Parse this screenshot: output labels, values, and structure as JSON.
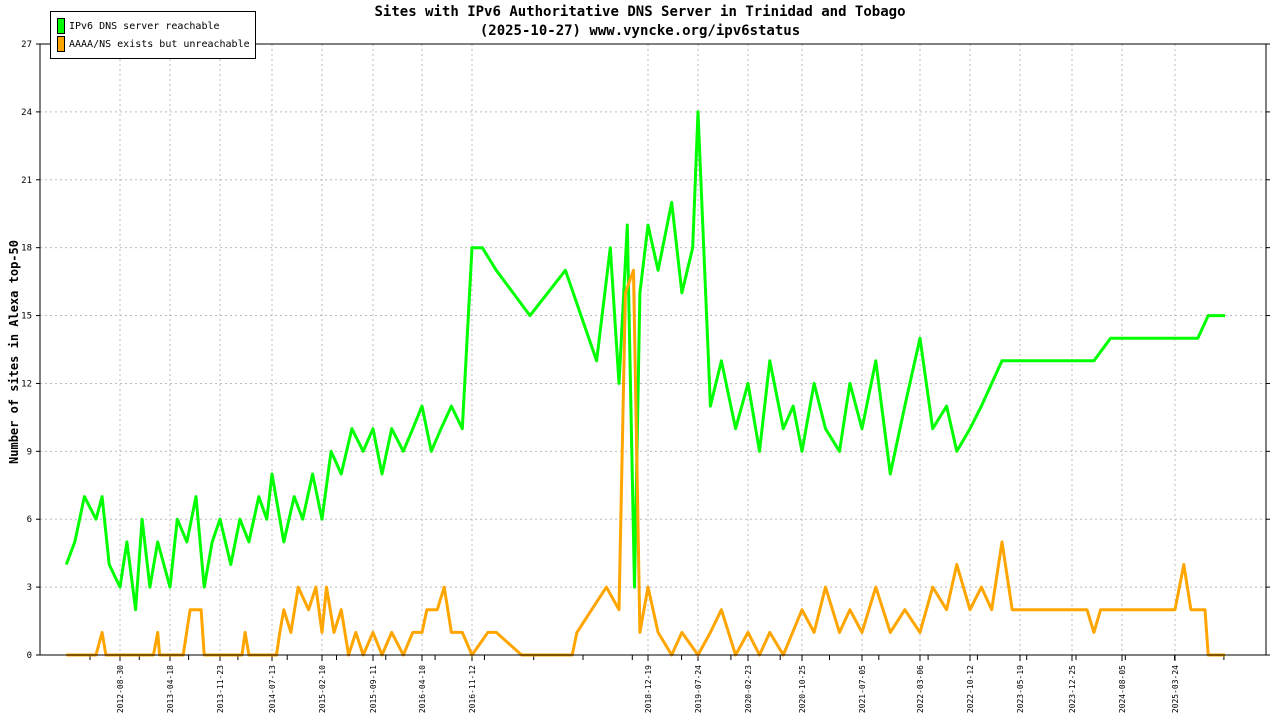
{
  "title": "Sites with IPv6 Authoritative DNS Server in Trinidad and Tobago",
  "subtitle": "(2025-10-27) www.vyncke.org/ipv6status",
  "chart_data": {
    "type": "line",
    "ylabel": "Number of sites in Alexa top-50",
    "ylim": [
      0,
      27
    ],
    "yticks": [
      0,
      3,
      6,
      9,
      12,
      15,
      18,
      21,
      24,
      27
    ],
    "xticks": [
      "2012-08-30",
      "2013-04-18",
      "2013-11-23",
      "2014-07-13",
      "2015-02-10",
      "2015-09-11",
      "2016-04-10",
      "2016-11-12",
      "2018-12-19",
      "2019-07-24",
      "2020-02-23",
      "2020-10-25",
      "2021-07-05",
      "2022-03-06",
      "2022-10-12",
      "2023-05-19",
      "2023-12-25",
      "2024-08-05",
      "2025-03-24"
    ],
    "legend_position": "top-left",
    "grid": true,
    "series": [
      {
        "name": "IPv6 DNS server reachable",
        "color": "#00ff00",
        "points": [
          [
            "2012-01-15",
            4
          ],
          [
            "2012-02-20",
            5
          ],
          [
            "2012-04-01",
            7
          ],
          [
            "2012-05-20",
            6
          ],
          [
            "2012-06-15",
            7
          ],
          [
            "2012-07-15",
            4
          ],
          [
            "2012-08-30",
            3
          ],
          [
            "2012-10-01",
            5
          ],
          [
            "2012-11-10",
            2
          ],
          [
            "2012-12-10",
            6
          ],
          [
            "2013-01-15",
            3
          ],
          [
            "2013-02-20",
            5
          ],
          [
            "2013-04-18",
            3
          ],
          [
            "2013-05-20",
            6
          ],
          [
            "2013-07-01",
            5
          ],
          [
            "2013-08-10",
            7
          ],
          [
            "2013-09-15",
            3
          ],
          [
            "2013-10-20",
            5
          ],
          [
            "2013-11-23",
            6
          ],
          [
            "2014-01-10",
            4
          ],
          [
            "2014-02-20",
            6
          ],
          [
            "2014-04-01",
            5
          ],
          [
            "2014-05-15",
            7
          ],
          [
            "2014-06-20",
            6
          ],
          [
            "2014-07-13",
            8
          ],
          [
            "2014-09-01",
            5
          ],
          [
            "2014-10-15",
            7
          ],
          [
            "2014-11-20",
            6
          ],
          [
            "2015-01-01",
            8
          ],
          [
            "2015-02-10",
            6
          ],
          [
            "2015-03-20",
            9
          ],
          [
            "2015-05-01",
            8
          ],
          [
            "2015-06-15",
            10
          ],
          [
            "2015-08-01",
            9
          ],
          [
            "2015-09-11",
            10
          ],
          [
            "2015-10-20",
            8
          ],
          [
            "2015-12-01",
            10
          ],
          [
            "2016-01-20",
            9
          ],
          [
            "2016-03-01",
            10
          ],
          [
            "2016-04-10",
            11
          ],
          [
            "2016-05-20",
            9
          ],
          [
            "2016-07-01",
            10
          ],
          [
            "2016-08-15",
            11
          ],
          [
            "2016-10-01",
            10
          ],
          [
            "2016-11-12",
            18
          ],
          [
            "2016-12-20",
            18
          ],
          [
            "2017-02-10",
            17
          ],
          [
            "2017-06-15",
            15
          ],
          [
            "2017-11-20",
            17
          ],
          [
            "2018-04-15",
            13
          ],
          [
            "2018-06-20",
            18
          ],
          [
            "2018-08-01",
            12
          ],
          [
            "2018-09-10",
            19
          ],
          [
            "2018-10-15",
            3
          ],
          [
            "2018-11-10",
            16
          ],
          [
            "2018-12-19",
            19
          ],
          [
            "2019-02-01",
            17
          ],
          [
            "2019-04-01",
            20
          ],
          [
            "2019-05-15",
            16
          ],
          [
            "2019-07-01",
            18
          ],
          [
            "2019-07-24",
            24
          ],
          [
            "2019-09-15",
            11
          ],
          [
            "2019-11-01",
            13
          ],
          [
            "2020-01-01",
            10
          ],
          [
            "2020-02-23",
            12
          ],
          [
            "2020-04-15",
            9
          ],
          [
            "2020-06-01",
            13
          ],
          [
            "2020-08-01",
            10
          ],
          [
            "2020-09-15",
            11
          ],
          [
            "2020-10-25",
            9
          ],
          [
            "2020-12-15",
            12
          ],
          [
            "2021-02-01",
            10
          ],
          [
            "2021-04-01",
            9
          ],
          [
            "2021-05-15",
            12
          ],
          [
            "2021-07-05",
            10
          ],
          [
            "2021-09-01",
            13
          ],
          [
            "2021-11-01",
            8
          ],
          [
            "2022-01-01",
            11
          ],
          [
            "2022-03-06",
            14
          ],
          [
            "2022-05-01",
            10
          ],
          [
            "2022-07-01",
            11
          ],
          [
            "2022-08-15",
            9
          ],
          [
            "2022-10-12",
            10
          ],
          [
            "2022-12-01",
            11
          ],
          [
            "2023-01-15",
            12
          ],
          [
            "2023-03-01",
            13
          ],
          [
            "2023-05-19",
            13
          ],
          [
            "2023-08-01",
            13
          ],
          [
            "2023-12-25",
            13
          ],
          [
            "2024-04-01",
            13
          ],
          [
            "2024-06-15",
            14
          ],
          [
            "2024-08-05",
            14
          ],
          [
            "2025-01-01",
            14
          ],
          [
            "2025-03-24",
            14
          ],
          [
            "2025-07-01",
            14
          ],
          [
            "2025-08-15",
            15
          ],
          [
            "2025-10-27",
            15
          ]
        ]
      },
      {
        "name": "AAAA/NS exists but unreachable",
        "color": "#ffa500",
        "points": [
          [
            "2012-01-15",
            0
          ],
          [
            "2012-05-20",
            0
          ],
          [
            "2012-06-15",
            1
          ],
          [
            "2012-07-01",
            0
          ],
          [
            "2013-02-01",
            0
          ],
          [
            "2013-02-20",
            1
          ],
          [
            "2013-03-01",
            0
          ],
          [
            "2013-06-15",
            0
          ],
          [
            "2013-07-15",
            2
          ],
          [
            "2013-09-01",
            2
          ],
          [
            "2013-09-15",
            0
          ],
          [
            "2014-03-01",
            0
          ],
          [
            "2014-03-15",
            1
          ],
          [
            "2014-04-01",
            0
          ],
          [
            "2014-08-01",
            0
          ],
          [
            "2014-08-15",
            1
          ],
          [
            "2014-09-01",
            2
          ],
          [
            "2014-10-01",
            1
          ],
          [
            "2014-11-01",
            3
          ],
          [
            "2014-12-15",
            2
          ],
          [
            "2015-01-15",
            3
          ],
          [
            "2015-02-10",
            1
          ],
          [
            "2015-03-01",
            3
          ],
          [
            "2015-04-01",
            1
          ],
          [
            "2015-05-01",
            2
          ],
          [
            "2015-06-01",
            0
          ],
          [
            "2015-07-01",
            1
          ],
          [
            "2015-08-01",
            0
          ],
          [
            "2015-09-11",
            1
          ],
          [
            "2015-10-20",
            0
          ],
          [
            "2015-12-01",
            1
          ],
          [
            "2016-01-20",
            0
          ],
          [
            "2016-03-01",
            1
          ],
          [
            "2016-04-10",
            1
          ],
          [
            "2016-05-01",
            2
          ],
          [
            "2016-06-15",
            2
          ],
          [
            "2016-07-15",
            3
          ],
          [
            "2016-08-15",
            1
          ],
          [
            "2016-10-01",
            1
          ],
          [
            "2016-11-12",
            0
          ],
          [
            "2017-01-10",
            1
          ],
          [
            "2017-02-10",
            1
          ],
          [
            "2017-05-15",
            0
          ],
          [
            "2017-12-20",
            0
          ],
          [
            "2018-01-10",
            1
          ],
          [
            "2018-06-01",
            3
          ],
          [
            "2018-08-01",
            2
          ],
          [
            "2018-09-01",
            16
          ],
          [
            "2018-10-10",
            17
          ],
          [
            "2018-11-10",
            1
          ],
          [
            "2018-12-19",
            3
          ],
          [
            "2019-02-01",
            1
          ],
          [
            "2019-04-01",
            0
          ],
          [
            "2019-05-15",
            1
          ],
          [
            "2019-07-24",
            0
          ],
          [
            "2019-09-15",
            1
          ],
          [
            "2019-11-01",
            2
          ],
          [
            "2020-01-01",
            0
          ],
          [
            "2020-02-23",
            1
          ],
          [
            "2020-04-15",
            0
          ],
          [
            "2020-06-01",
            1
          ],
          [
            "2020-08-01",
            0
          ],
          [
            "2020-10-25",
            2
          ],
          [
            "2020-12-15",
            1
          ],
          [
            "2021-02-01",
            3
          ],
          [
            "2021-04-01",
            1
          ],
          [
            "2021-05-15",
            2
          ],
          [
            "2021-07-05",
            1
          ],
          [
            "2021-09-01",
            3
          ],
          [
            "2021-11-01",
            1
          ],
          [
            "2022-01-01",
            2
          ],
          [
            "2022-03-06",
            1
          ],
          [
            "2022-05-01",
            3
          ],
          [
            "2022-07-01",
            2
          ],
          [
            "2022-08-15",
            4
          ],
          [
            "2022-10-12",
            2
          ],
          [
            "2022-12-01",
            3
          ],
          [
            "2023-01-15",
            2
          ],
          [
            "2023-03-01",
            5
          ],
          [
            "2023-04-15",
            2
          ],
          [
            "2023-05-19",
            2
          ],
          [
            "2023-12-25",
            2
          ],
          [
            "2024-03-01",
            2
          ],
          [
            "2024-04-01",
            1
          ],
          [
            "2024-05-01",
            2
          ],
          [
            "2024-08-05",
            2
          ],
          [
            "2025-03-24",
            2
          ],
          [
            "2025-05-01",
            4
          ],
          [
            "2025-06-01",
            2
          ],
          [
            "2025-08-01",
            2
          ],
          [
            "2025-08-15",
            0
          ],
          [
            "2025-10-27",
            0
          ]
        ]
      }
    ]
  }
}
